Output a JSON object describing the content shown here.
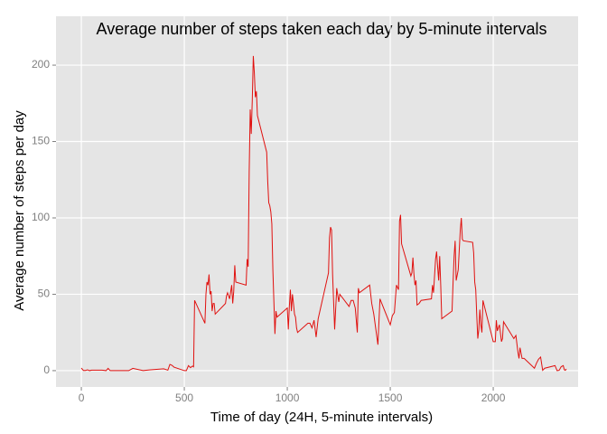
{
  "chart_data": {
    "type": "line",
    "title": "Average number of steps taken each day by 5-minute intervals",
    "x_label": "Time of day (24H, 5-minute intervals)",
    "y_label": "Average number of steps per day",
    "x": [
      0,
      10,
      20,
      30,
      40,
      50,
      100,
      110,
      120,
      130,
      140,
      200,
      230,
      250,
      300,
      330,
      400,
      420,
      430,
      440,
      450,
      500,
      510,
      520,
      530,
      540,
      545,
      550,
      600,
      605,
      610,
      615,
      620,
      625,
      630,
      635,
      640,
      645,
      650,
      700,
      705,
      710,
      720,
      730,
      735,
      740,
      745,
      750,
      800,
      805,
      810,
      815,
      820,
      825,
      830,
      835,
      840,
      845,
      850,
      855,
      900,
      905,
      910,
      915,
      920,
      925,
      930,
      935,
      940,
      945,
      950,
      1000,
      1005,
      1010,
      1015,
      1020,
      1025,
      1030,
      1035,
      1040,
      1045,
      1050,
      1100,
      1110,
      1120,
      1130,
      1140,
      1150,
      1200,
      1205,
      1210,
      1215,
      1220,
      1230,
      1240,
      1250,
      1255,
      1300,
      1310,
      1320,
      1330,
      1340,
      1345,
      1350,
      1400,
      1410,
      1420,
      1430,
      1440,
      1450,
      1500,
      1510,
      1520,
      1530,
      1540,
      1545,
      1550,
      1555,
      1600,
      1605,
      1610,
      1615,
      1620,
      1625,
      1630,
      1640,
      1650,
      1700,
      1705,
      1710,
      1720,
      1725,
      1730,
      1735,
      1740,
      1745,
      1750,
      1800,
      1805,
      1810,
      1815,
      1820,
      1830,
      1840,
      1845,
      1850,
      1855,
      1900,
      1905,
      1910,
      1915,
      1920,
      1925,
      1930,
      1935,
      1940,
      1945,
      1950,
      2000,
      2010,
      2015,
      2020,
      2030,
      2040,
      2045,
      2050,
      2100,
      2110,
      2120,
      2125,
      2130,
      2140,
      2150,
      2200,
      2210,
      2220,
      2230,
      2240,
      2250,
      2300,
      2310,
      2320,
      2330,
      2340,
      2345,
      2350,
      2355
    ],
    "series": [
      {
        "name": "steps",
        "color": "#e0110f",
        "values": [
          1.7,
          0.1,
          0.1,
          0.5,
          0,
          0.3,
          0.3,
          0.2,
          0,
          1.5,
          0,
          0,
          0,
          1.5,
          0,
          0.5,
          1.2,
          0.3,
          4.1,
          3.5,
          2.3,
          0,
          0,
          3.3,
          2,
          3,
          2.5,
          46,
          31,
          50,
          58,
          56,
          63,
          50,
          52,
          39,
          44,
          44,
          37,
          44,
          49,
          51,
          47,
          56,
          44,
          52,
          69,
          58,
          56,
          73,
          68,
          130,
          171,
          155,
          177,
          206,
          195,
          179,
          183,
          167,
          143,
          124,
          110,
          108,
          104,
          96,
          66,
          45,
          24,
          39,
          35,
          41,
          27,
          42,
          53,
          39,
          50,
          44,
          37,
          35,
          28,
          25,
          31,
          31,
          28,
          33,
          22,
          34,
          64,
          87,
          94,
          92,
          63,
          27,
          54,
          45,
          50,
          42,
          46,
          46,
          41,
          25,
          54,
          51,
          56,
          44,
          37,
          27,
          17,
          47,
          30,
          36,
          38,
          56,
          53,
          98,
          102,
          83,
          62,
          64,
          74,
          63,
          56,
          59,
          43,
          44,
          46,
          47,
          56,
          51,
          73,
          78,
          68,
          59,
          75,
          56,
          34,
          39,
          58,
          75,
          85,
          59,
          66,
          92,
          100,
          86,
          85,
          84,
          77,
          58,
          53,
          36,
          21,
          27,
          40,
          30,
          25,
          46,
          19,
          19,
          33,
          26,
          30,
          19,
          21,
          32,
          21,
          23,
          12,
          8,
          15,
          8,
          8,
          1.6,
          4.9,
          7.5,
          8.9,
          0.2,
          1.6,
          3.3,
          0,
          0.2,
          2.6,
          3.3,
          0.6,
          0.2,
          1.1
        ]
      }
    ],
    "xlim": [
      -123,
      2412
    ],
    "ylim": [
      -10.7,
      232
    ],
    "xticks": [
      0,
      500,
      1000,
      1500,
      2000
    ],
    "yticks": [
      0,
      50,
      100,
      150,
      200
    ],
    "grid": true
  }
}
